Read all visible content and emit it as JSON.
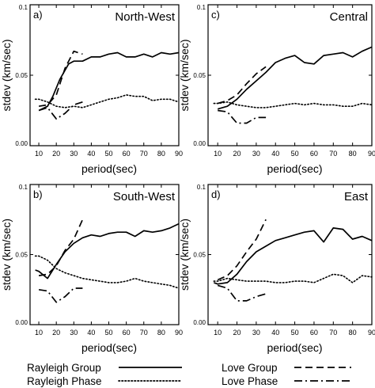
{
  "chart_data": [
    {
      "type": "line",
      "panel_label": "a)",
      "region_label": "North-West",
      "xlabel": "period(sec)",
      "ylabel": "stdev (km/sec)",
      "xlim": [
        5,
        90
      ],
      "ylim": [
        0,
        0.1
      ],
      "xticks": [
        "10",
        "20",
        "30",
        "40",
        "50",
        "60",
        "70",
        "80",
        "90"
      ],
      "yticks": [
        "0.00",
        "0.05",
        "0.1"
      ],
      "series": [
        {
          "name": "Rayleigh Group",
          "style": "solid",
          "x": [
            10,
            15,
            18,
            22,
            27,
            30,
            35,
            40,
            45,
            50,
            55,
            60,
            65,
            70,
            75,
            80,
            85,
            90
          ],
          "y": [
            0.025,
            0.028,
            0.035,
            0.047,
            0.058,
            0.06,
            0.06,
            0.063,
            0.063,
            0.065,
            0.066,
            0.063,
            0.063,
            0.065,
            0.063,
            0.066,
            0.065,
            0.066
          ]
        },
        {
          "name": "Rayleigh Phase",
          "style": "dotted",
          "x": [
            8,
            10,
            15,
            20,
            25,
            30,
            35,
            40,
            45,
            50,
            55,
            60,
            65,
            70,
            75,
            80,
            85,
            90
          ],
          "y": [
            0.033,
            0.033,
            0.031,
            0.028,
            0.027,
            0.028,
            0.027,
            0.029,
            0.031,
            0.033,
            0.034,
            0.036,
            0.035,
            0.035,
            0.032,
            0.033,
            0.033,
            0.031
          ]
        },
        {
          "name": "Love Group",
          "style": "dashed",
          "x": [
            10,
            15,
            20,
            25,
            30,
            35
          ],
          "y": [
            0.028,
            0.029,
            0.036,
            0.055,
            0.067,
            0.065
          ]
        },
        {
          "name": "Love Phase",
          "style": "dashdot",
          "x": [
            10,
            15,
            20,
            25,
            30,
            35
          ],
          "y": [
            0.025,
            0.027,
            0.019,
            0.023,
            0.029,
            0.031
          ]
        }
      ]
    },
    {
      "type": "line",
      "panel_label": "c)",
      "region_label": "Central",
      "xlabel": "period(sec)",
      "ylabel": "stdev (km/sec)",
      "xlim": [
        5,
        90
      ],
      "ylim": [
        0,
        0.1
      ],
      "xticks": [
        "10",
        "20",
        "30",
        "40",
        "50",
        "60",
        "70",
        "80",
        "90"
      ],
      "yticks": [
        "0.00",
        "0.05",
        "0.1"
      ],
      "series": [
        {
          "name": "Rayleigh Group",
          "style": "solid",
          "x": [
            10,
            15,
            20,
            25,
            30,
            35,
            40,
            45,
            50,
            55,
            60,
            65,
            70,
            75,
            80,
            85,
            90
          ],
          "y": [
            0.026,
            0.028,
            0.033,
            0.04,
            0.046,
            0.052,
            0.059,
            0.062,
            0.064,
            0.059,
            0.058,
            0.064,
            0.065,
            0.066,
            0.063,
            0.067,
            0.07
          ]
        },
        {
          "name": "Rayleigh Phase",
          "style": "dotted",
          "x": [
            8,
            10,
            15,
            20,
            25,
            30,
            35,
            40,
            45,
            50,
            55,
            60,
            65,
            70,
            75,
            80,
            85,
            90
          ],
          "y": [
            0.03,
            0.03,
            0.031,
            0.029,
            0.028,
            0.027,
            0.027,
            0.028,
            0.029,
            0.03,
            0.029,
            0.03,
            0.029,
            0.029,
            0.028,
            0.028,
            0.03,
            0.029
          ]
        },
        {
          "name": "Love Group",
          "style": "dashed",
          "x": [
            10,
            15,
            20,
            25,
            30,
            35
          ],
          "y": [
            0.03,
            0.032,
            0.036,
            0.044,
            0.051,
            0.056
          ]
        },
        {
          "name": "Love Phase",
          "style": "dashdot",
          "x": [
            10,
            15,
            20,
            25,
            30,
            35
          ],
          "y": [
            0.025,
            0.024,
            0.016,
            0.016,
            0.02,
            0.02
          ]
        }
      ]
    },
    {
      "type": "line",
      "panel_label": "b)",
      "region_label": "South-West",
      "xlabel": "period(sec)",
      "ylabel": "stdev (km/sec)",
      "xlim": [
        5,
        90
      ],
      "ylim": [
        0,
        0.1
      ],
      "xticks": [
        "10",
        "20",
        "30",
        "40",
        "50",
        "60",
        "70",
        "80",
        "90"
      ],
      "yticks": [
        "0.00",
        "0.05",
        "0.1"
      ],
      "series": [
        {
          "name": "Rayleigh Group",
          "style": "solid",
          "x": [
            8,
            10,
            15,
            20,
            25,
            30,
            35,
            40,
            45,
            50,
            55,
            60,
            65,
            70,
            75,
            80,
            85,
            90
          ],
          "y": [
            0.039,
            0.038,
            0.033,
            0.043,
            0.052,
            0.058,
            0.062,
            0.064,
            0.063,
            0.065,
            0.066,
            0.066,
            0.063,
            0.067,
            0.066,
            0.067,
            0.069,
            0.072
          ]
        },
        {
          "name": "Rayleigh Phase",
          "style": "dotted",
          "x": [
            8,
            10,
            15,
            20,
            25,
            30,
            35,
            40,
            45,
            50,
            55,
            60,
            65,
            70,
            75,
            80,
            85,
            90
          ],
          "y": [
            0.049,
            0.049,
            0.046,
            0.04,
            0.037,
            0.035,
            0.033,
            0.032,
            0.031,
            0.03,
            0.03,
            0.031,
            0.033,
            0.031,
            0.03,
            0.029,
            0.028,
            0.026
          ]
        },
        {
          "name": "Love Group",
          "style": "dashed",
          "x": [
            10,
            15,
            20,
            25,
            30,
            35
          ],
          "y": [
            0.035,
            0.036,
            0.042,
            0.053,
            0.061,
            0.075
          ]
        },
        {
          "name": "Love Phase",
          "style": "dashdot",
          "x": [
            10,
            15,
            20,
            25,
            30,
            35
          ],
          "y": [
            0.025,
            0.024,
            0.016,
            0.02,
            0.026,
            0.026
          ]
        }
      ]
    },
    {
      "type": "line",
      "panel_label": "d)",
      "region_label": "East",
      "xlabel": "period(sec)",
      "ylabel": "stdev (km/sec)",
      "xlim": [
        5,
        90
      ],
      "ylim": [
        0,
        0.1
      ],
      "xticks": [
        "10",
        "20",
        "30",
        "40",
        "50",
        "60",
        "70",
        "80",
        "90"
      ],
      "yticks": [
        "0.00",
        "0.05",
        "0.1"
      ],
      "series": [
        {
          "name": "Rayleigh Group",
          "style": "solid",
          "x": [
            8,
            10,
            15,
            20,
            25,
            30,
            35,
            40,
            45,
            50,
            55,
            60,
            65,
            70,
            75,
            80,
            85,
            90
          ],
          "y": [
            0.03,
            0.029,
            0.03,
            0.036,
            0.045,
            0.052,
            0.056,
            0.06,
            0.062,
            0.064,
            0.066,
            0.067,
            0.059,
            0.069,
            0.068,
            0.061,
            0.063,
            0.06
          ]
        },
        {
          "name": "Rayleigh Phase",
          "style": "dotted",
          "x": [
            8,
            10,
            15,
            20,
            25,
            30,
            35,
            40,
            45,
            50,
            55,
            60,
            65,
            70,
            75,
            80,
            85,
            90
          ],
          "y": [
            0.031,
            0.031,
            0.033,
            0.032,
            0.031,
            0.031,
            0.031,
            0.03,
            0.03,
            0.031,
            0.031,
            0.03,
            0.033,
            0.036,
            0.035,
            0.03,
            0.035,
            0.034
          ]
        },
        {
          "name": "Love Group",
          "style": "dashed",
          "x": [
            10,
            15,
            20,
            25,
            30,
            35
          ],
          "y": [
            0.032,
            0.035,
            0.042,
            0.052,
            0.061,
            0.075
          ]
        },
        {
          "name": "Love Phase",
          "style": "dashdot",
          "x": [
            10,
            15,
            20,
            25,
            30,
            35
          ],
          "y": [
            0.028,
            0.026,
            0.017,
            0.017,
            0.02,
            0.022
          ]
        }
      ]
    }
  ],
  "legend": [
    {
      "label": "Rayleigh Group",
      "style": "solid"
    },
    {
      "label": "Rayleigh Phase",
      "style": "dotted"
    },
    {
      "label": "Love Group",
      "style": "dashed"
    },
    {
      "label": "Love Phase",
      "style": "dashdot"
    }
  ]
}
